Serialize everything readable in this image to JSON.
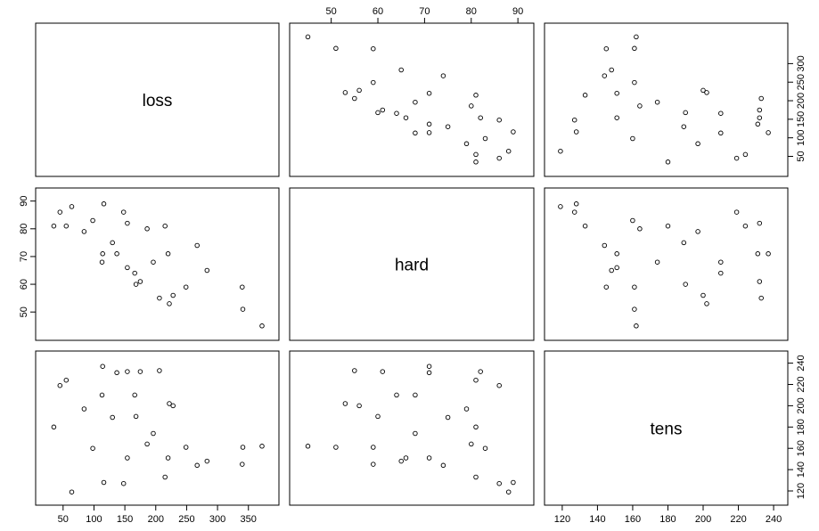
{
  "chart_data": {
    "type": "scatter",
    "title": "",
    "variables": [
      {
        "name": "loss",
        "range": [
          20,
          385
        ],
        "axis_side": "bottom",
        "ticks": [
          50,
          100,
          150,
          200,
          250,
          300,
          350
        ]
      },
      {
        "name": "hard",
        "range": [
          43,
          91.5
        ],
        "axis_side": "left",
        "ticks": [
          50,
          60,
          70,
          80,
          90
        ]
      },
      {
        "name": "tens",
        "range": [
          115,
          243
        ],
        "axis_side": "right",
        "ticks": [
          120,
          140,
          160,
          180,
          200,
          220,
          240
        ]
      }
    ],
    "top_axis": {
      "variable": "hard",
      "ticks": [
        50,
        60,
        70,
        80,
        90
      ]
    },
    "right_top_axis": {
      "variable": "loss",
      "ticks": [
        50,
        100,
        150,
        200,
        250,
        300
      ]
    },
    "observations": [
      {
        "loss": 372,
        "hard": 45,
        "tens": 162
      },
      {
        "loss": 341,
        "hard": 51,
        "tens": 161
      },
      {
        "loss": 340,
        "hard": 59,
        "tens": 145
      },
      {
        "loss": 283,
        "hard": 65,
        "tens": 148
      },
      {
        "loss": 267,
        "hard": 74,
        "tens": 144
      },
      {
        "loss": 249,
        "hard": 59,
        "tens": 161
      },
      {
        "loss": 228,
        "hard": 56,
        "tens": 200
      },
      {
        "loss": 222,
        "hard": 53,
        "tens": 202
      },
      {
        "loss": 220,
        "hard": 71,
        "tens": 151
      },
      {
        "loss": 215,
        "hard": 81,
        "tens": 133
      },
      {
        "loss": 206,
        "hard": 55,
        "tens": 233
      },
      {
        "loss": 196,
        "hard": 68,
        "tens": 174
      },
      {
        "loss": 186,
        "hard": 80,
        "tens": 164
      },
      {
        "loss": 175,
        "hard": 61,
        "tens": 232
      },
      {
        "loss": 168,
        "hard": 60,
        "tens": 190
      },
      {
        "loss": 166,
        "hard": 64,
        "tens": 210
      },
      {
        "loss": 154,
        "hard": 66,
        "tens": 151
      },
      {
        "loss": 154,
        "hard": 82,
        "tens": 232
      },
      {
        "loss": 148,
        "hard": 86,
        "tens": 127
      },
      {
        "loss": 137,
        "hard": 71,
        "tens": 231
      },
      {
        "loss": 130,
        "hard": 75,
        "tens": 189
      },
      {
        "loss": 116,
        "hard": 89,
        "tens": 128
      },
      {
        "loss": 114,
        "hard": 71,
        "tens": 237
      },
      {
        "loss": 113,
        "hard": 68,
        "tens": 210
      },
      {
        "loss": 98,
        "hard": 83,
        "tens": 160
      },
      {
        "loss": 84,
        "hard": 79,
        "tens": 197
      },
      {
        "loss": 64,
        "hard": 88,
        "tens": 119
      },
      {
        "loss": 55,
        "hard": 81,
        "tens": 224
      },
      {
        "loss": 45,
        "hard": 86,
        "tens": 219
      },
      {
        "loss": 35,
        "hard": 81,
        "tens": 180
      }
    ],
    "grid": false,
    "legend": "none"
  }
}
